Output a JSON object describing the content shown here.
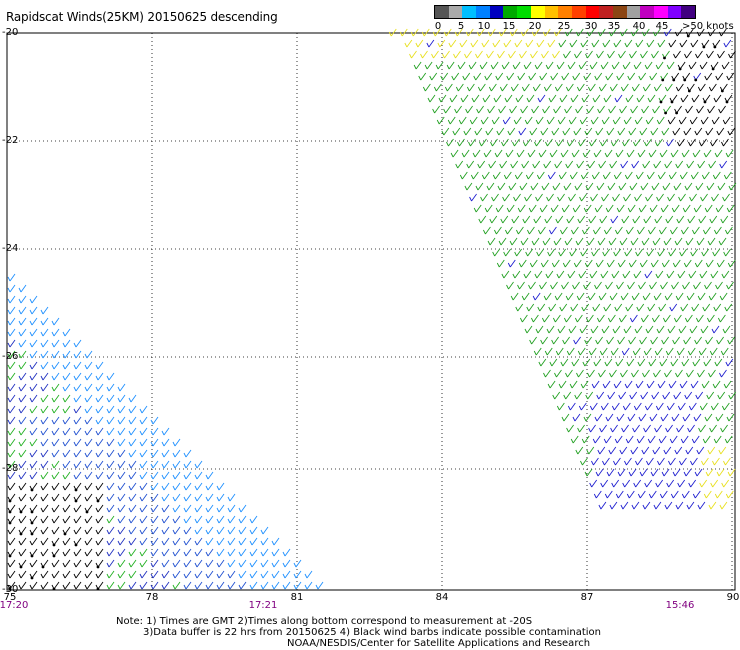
{
  "title": "Rapidscat Winds(25KM) 20150625 descending",
  "legend": {
    "colors": [
      "#555555",
      "#aaaaaa",
      "#00bfff",
      "#0080ff",
      "#0000c0",
      "#00aa00",
      "#00dd00",
      "#ffff00",
      "#ffc000",
      "#ff8000",
      "#ff4000",
      "#ff0000",
      "#c02020",
      "#8b4513",
      "#a0a0a0",
      "#c000c0",
      "#ff00ff",
      "#8000ff",
      "#400080"
    ],
    "labels": [
      "0",
      "5",
      "10",
      "15",
      "20",
      "25",
      "30",
      "35",
      "40",
      "45",
      ">50 knots"
    ]
  },
  "map": {
    "lat_ticks": [
      "-20",
      "-22",
      "-24",
      "-26",
      "-28",
      "-30"
    ],
    "lon_ticks": [
      "75",
      "78",
      "81",
      "84",
      "87",
      "90"
    ],
    "time_labels": [
      "17:20",
      "17:21",
      "15:46"
    ],
    "swaths": [
      {
        "name": "east-swath",
        "time": "15:46"
      },
      {
        "name": "west-swath",
        "time": "17:20"
      }
    ]
  },
  "notes": {
    "line1": "Note: 1) Times are GMT 2)Times along bottom correspond to measurement at -20S",
    "line2": "3)Data buffer is 22 hrs from 20150625 4) Black wind barbs indicate possible contamination",
    "line3": "NOAA/NESDIS/Center for Satellite Applications and Research"
  }
}
